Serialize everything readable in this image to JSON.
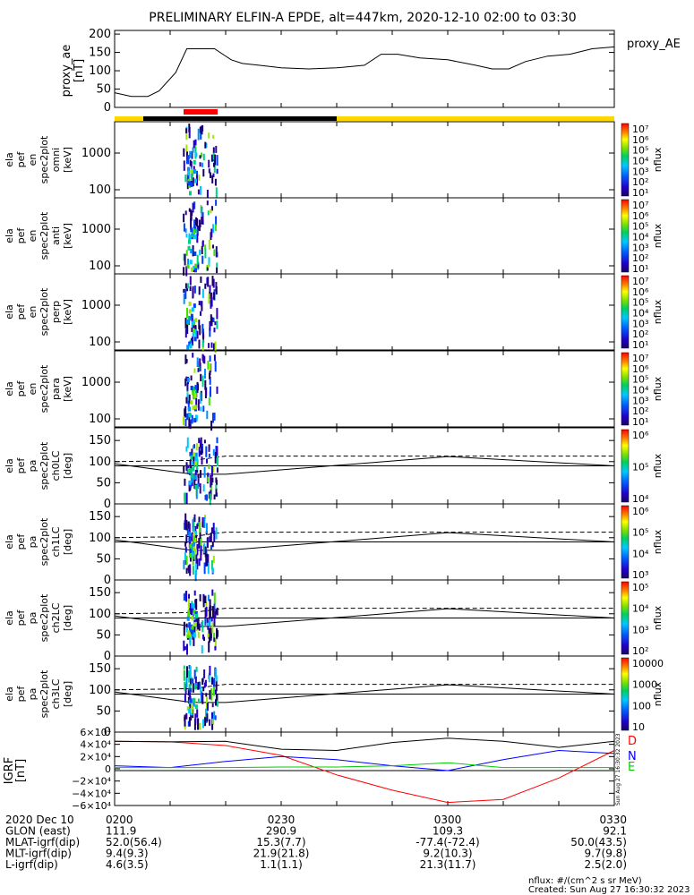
{
  "title": "PRELIMINARY ELFIN-A EPDE, alt=447km, 2020-12-10 02:00 to 03:30",
  "colors": {
    "ae_line": "#000000",
    "region_bar_a": "#ffd700",
    "region_bar_b": "#000000",
    "science_zone": "#ff0000",
    "igrf_d": "#ff0000",
    "igrf_n": "#0000ff",
    "igrf_e": "#00cc00",
    "igrf_total": "#000000"
  },
  "panels": [
    {
      "id": "ae",
      "ylabel": [
        "proxy_ae",
        "[nT]"
      ],
      "side_label": "proxy_AE",
      "ticks": [
        "200",
        "150",
        "100",
        "50",
        "0"
      ]
    },
    {
      "id": "en_omni",
      "ylabel": [
        "ela",
        "pef",
        "en",
        "spec2plot",
        "omni",
        "[keV]"
      ],
      "ticks": [
        "1000",
        "100"
      ],
      "cbar_ticks": [
        "10⁷",
        "10⁶",
        "10⁵",
        "10⁴",
        "10³",
        "10²",
        "10¹"
      ],
      "cbar_unit": "nflux"
    },
    {
      "id": "en_anti",
      "ylabel": [
        "ela",
        "pef",
        "en",
        "spec2plot",
        "anti",
        "[keV]"
      ],
      "ticks": [
        "1000",
        "100"
      ],
      "cbar_ticks": [
        "10⁷",
        "10⁶",
        "10⁵",
        "10⁴",
        "10³",
        "10²",
        "10¹"
      ],
      "cbar_unit": "nflux"
    },
    {
      "id": "en_perp",
      "ylabel": [
        "ela",
        "pef",
        "en",
        "spec2plot",
        "perp",
        "[keV]"
      ],
      "ticks": [
        "1000",
        "100"
      ],
      "cbar_ticks": [
        "10⁷",
        "10⁶",
        "10⁵",
        "10⁴",
        "10³",
        "10²",
        "10¹"
      ],
      "cbar_unit": "nflux"
    },
    {
      "id": "en_para",
      "ylabel": [
        "ela",
        "pef",
        "en",
        "spec2plot",
        "para",
        "[keV]"
      ],
      "ticks": [
        "1000",
        "100"
      ],
      "cbar_ticks": [
        "10⁷",
        "10⁶",
        "10⁵",
        "10⁴",
        "10³",
        "10²",
        "10¹"
      ],
      "cbar_unit": "nflux"
    },
    {
      "id": "pa_ch0",
      "ylabel": [
        "ela",
        "pef",
        "pa",
        "spec2plot",
        "ch0LC",
        "[deg]"
      ],
      "ticks": [
        "150",
        "100",
        "50",
        "0"
      ],
      "cbar_ticks": [
        "10⁶",
        "10⁵",
        "10⁴"
      ],
      "cbar_unit": "nflux"
    },
    {
      "id": "pa_ch1",
      "ylabel": [
        "ela",
        "pef",
        "pa",
        "spec2plot",
        "ch1LC",
        "[deg]"
      ],
      "ticks": [
        "150",
        "100",
        "50",
        "0"
      ],
      "cbar_ticks": [
        "10⁶",
        "10⁵",
        "10⁴",
        "10³"
      ],
      "cbar_unit": "nflux"
    },
    {
      "id": "pa_ch2",
      "ylabel": [
        "ela",
        "pef",
        "pa",
        "spec2plot",
        "ch2LC",
        "[deg]"
      ],
      "ticks": [
        "150",
        "100",
        "50",
        "0"
      ],
      "cbar_ticks": [
        "10⁵",
        "10⁴",
        "10³",
        "10²"
      ],
      "cbar_unit": "nflux"
    },
    {
      "id": "pa_ch3",
      "ylabel": [
        "ela",
        "pef",
        "pa",
        "spec2plot",
        "ch3LC",
        "[deg]"
      ],
      "ticks": [
        "150",
        "100",
        "50",
        "0"
      ],
      "cbar_ticks": [
        "10000",
        "1000",
        "100",
        "10"
      ],
      "cbar_unit": "nflux"
    },
    {
      "id": "igrf",
      "ylabel": [
        "IGRF",
        "[nT]"
      ],
      "ticks": [
        "6×10⁴",
        "4×10⁴",
        "2×10⁴",
        "0",
        "−2×10⁴",
        "−4×10⁴",
        "−6×10⁴"
      ],
      "legend": [
        "D",
        "N",
        "E"
      ]
    }
  ],
  "footer": {
    "rows": [
      {
        "label": "2020 Dec 10",
        "values": [
          "0200",
          "0230",
          "0300",
          "0330"
        ]
      },
      {
        "label": "GLON (east)",
        "values": [
          "111.9",
          "290.9",
          "109.3",
          "92.1"
        ]
      },
      {
        "label": "MLAT-igrf(dip)",
        "values": [
          "52.0(56.4)",
          "15.3(7.7)",
          "-77.4(-72.4)",
          "50.0(43.5)"
        ]
      },
      {
        "label": "MLT-igrf(dip)",
        "values": [
          "9.4(9.3)",
          "21.9(21.8)",
          "9.2(10.3)",
          "9.7(9.8)"
        ]
      },
      {
        "label": "L-igrf(dip)",
        "values": [
          "4.6(3.5)",
          "1.1(1.1)",
          "21.3(11.7)",
          "2.5(2.0)"
        ]
      }
    ],
    "unit_note": "nflux: #/(cm^2 s sr MeV)",
    "created": "Created: Sun Aug 27 16:30:32 2023",
    "side_stamp": "Sun Aug 27 16:30:32 2023"
  },
  "chart_data": [
    {
      "type": "line",
      "name": "proxy_AE",
      "x": [
        "02:00",
        "02:03",
        "02:06",
        "02:08",
        "02:11",
        "02:13",
        "02:16",
        "02:18",
        "02:21",
        "02:23",
        "02:26",
        "02:30",
        "02:35",
        "02:40",
        "02:45",
        "02:48",
        "02:51",
        "02:55",
        "03:00",
        "03:05",
        "03:08",
        "03:11",
        "03:14",
        "03:18",
        "03:22",
        "03:26",
        "03:30"
      ],
      "y": [
        40,
        30,
        30,
        45,
        95,
        160,
        160,
        160,
        130,
        120,
        115,
        108,
        105,
        108,
        115,
        145,
        145,
        135,
        130,
        115,
        105,
        105,
        125,
        140,
        145,
        160,
        165
      ],
      "ylabel": "proxy_ae [nT]",
      "ylim": [
        0,
        210
      ],
      "xlim": [
        "02:00",
        "03:30"
      ]
    },
    {
      "type": "heatmap",
      "name": "spec2plot",
      "x_range": [
        "02:12",
        "02:18"
      ],
      "energy_range_keV": [
        60,
        7000
      ],
      "pitch_angle_range_deg": [
        0,
        180
      ],
      "colorbar_unit": "nflux",
      "colorbar_range": [
        "10¹",
        "10⁷"
      ]
    },
    {
      "type": "line",
      "name": "IGRF",
      "x": [
        "02:00",
        "02:10",
        "02:20",
        "02:30",
        "02:40",
        "02:50",
        "03:00",
        "03:10",
        "03:20",
        "03:30"
      ],
      "series": [
        {
          "name": "D",
          "values": [
            45000,
            44000,
            38000,
            22000,
            -10000,
            -35000,
            -55000,
            -50000,
            -15000,
            30000
          ]
        },
        {
          "name": "N",
          "values": [
            5000,
            2000,
            12000,
            20000,
            15000,
            5000,
            -3000,
            15000,
            30000,
            25000
          ]
        },
        {
          "name": "E",
          "values": [
            2000,
            2000,
            2000,
            3000,
            3000,
            5000,
            10000,
            2000,
            2000,
            2000
          ]
        },
        {
          "name": "",
          "values": [
            45000,
            44000,
            45000,
            32000,
            30000,
            43000,
            50000,
            45000,
            35000,
            45000
          ]
        }
      ],
      "ylim": [
        -60000,
        60000
      ]
    }
  ]
}
